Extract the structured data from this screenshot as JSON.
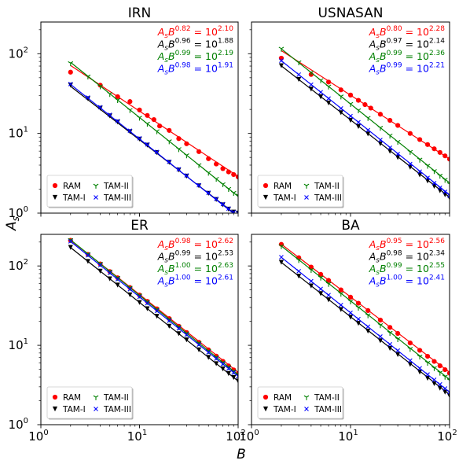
{
  "figure": {
    "xlabel": "B",
    "ylabel_base": "A",
    "ylabel_sub": "s"
  },
  "legend_labels": [
    "RAM",
    "TAM-I",
    "TAM-II",
    "TAM-III"
  ],
  "colors": {
    "RAM": "#ff0000",
    "TAM-I": "#000000",
    "TAM-II": "#008000",
    "TAM-III": "#0000ff"
  },
  "chart_data": [
    {
      "type": "scatter",
      "title": "IRN",
      "xscale": "log",
      "yscale": "log",
      "xlim": [
        1,
        100
      ],
      "ylim": [
        1,
        250
      ],
      "xticks": [
        "10^0",
        "10^1",
        "10^2"
      ],
      "yticks": [
        "10^0",
        "10^1",
        "10^2"
      ],
      "legend_position": "lower-left",
      "equations": [
        {
          "series": "RAM",
          "exponent": "0.82",
          "rhs": "2.10"
        },
        {
          "series": "TAM-I",
          "exponent": "0.96",
          "rhs": "1.88"
        },
        {
          "series": "TAM-II",
          "exponent": "0.99",
          "rhs": "2.19"
        },
        {
          "series": "TAM-III",
          "exponent": "0.98",
          "rhs": "1.91"
        }
      ],
      "series": [
        {
          "name": "RAM",
          "marker": "circle",
          "fit": {
            "a": 2.1,
            "b": 0.82
          },
          "x": [
            2,
            4,
            6,
            8,
            10,
            12,
            14,
            16,
            20,
            25,
            30,
            40,
            50,
            60,
            70,
            80,
            90,
            100
          ],
          "y": [
            58.7,
            40.3,
            28.9,
            25.1,
            19.7,
            16.8,
            14.9,
            12.4,
            10.9,
            8.61,
            7.42,
            5.91,
            4.82,
            4.13,
            3.62,
            3.29,
            3.05,
            2.85
          ]
        },
        {
          "name": "TAM-I",
          "marker": "triangle-down",
          "fit": {
            "a": 1.88,
            "b": 0.96
          },
          "x": [
            2,
            3,
            4,
            5,
            6,
            8,
            10,
            12,
            15,
            20,
            25,
            30,
            40,
            50,
            60,
            70,
            80,
            90,
            100
          ],
          "y": [
            40.4,
            27.3,
            20.7,
            16.6,
            13.9,
            10.5,
            8.48,
            7.12,
            5.74,
            4.33,
            3.48,
            2.91,
            2.2,
            1.77,
            1.48,
            1.27,
            1.12,
            1.03,
            1.0
          ]
        },
        {
          "name": "TAM-II",
          "marker": "tri-down",
          "fit": {
            "a": 2.19,
            "b": 0.99
          },
          "x": [
            2,
            3,
            4,
            5,
            6,
            8,
            10,
            12,
            15,
            20,
            25,
            30,
            40,
            50,
            60,
            70,
            80,
            90,
            100
          ],
          "y": [
            76.3,
            52.0,
            39.1,
            31.4,
            26.3,
            19.7,
            15.8,
            13.3,
            10.7,
            8.0,
            6.38,
            5.33,
            4.02,
            3.22,
            2.7,
            2.31,
            2.02,
            1.8,
            1.67
          ]
        },
        {
          "name": "TAM-III",
          "marker": "x",
          "fit": {
            "a": 1.91,
            "b": 0.98
          },
          "x": [
            2,
            3,
            4,
            5,
            6,
            8,
            10,
            12,
            15,
            20,
            25,
            30,
            40,
            50,
            60,
            70,
            80,
            90,
            100
          ],
          "y": [
            41.6,
            28.2,
            21.3,
            17.1,
            14.3,
            10.8,
            8.68,
            7.28,
            5.85,
            4.41,
            3.55,
            2.97,
            2.24,
            1.8,
            1.51,
            1.3,
            1.14,
            1.03,
            1.0
          ]
        }
      ]
    },
    {
      "type": "scatter",
      "title": "USNASAN",
      "xscale": "log",
      "yscale": "log",
      "xlim": [
        1,
        100
      ],
      "ylim": [
        1,
        250
      ],
      "xticks": [
        "10^0",
        "10^1",
        "10^2"
      ],
      "yticks": [
        "10^0",
        "10^1",
        "10^2"
      ],
      "legend_position": "lower-left",
      "equations": [
        {
          "series": "RAM",
          "exponent": "0.80",
          "rhs": "2.28"
        },
        {
          "series": "TAM-I",
          "exponent": "0.97",
          "rhs": "2.14"
        },
        {
          "series": "TAM-II",
          "exponent": "0.99",
          "rhs": "2.36"
        },
        {
          "series": "TAM-III",
          "exponent": "0.99",
          "rhs": "2.21"
        }
      ],
      "series": [
        {
          "name": "RAM",
          "marker": "circle",
          "fit": {
            "a": 2.28,
            "b": 0.8
          },
          "x": [
            2,
            4,
            6,
            8,
            10,
            12,
            14,
            16,
            20,
            25,
            30,
            40,
            50,
            60,
            70,
            80,
            90,
            100
          ],
          "y": [
            88.0,
            55.0,
            44.1,
            35.2,
            30.3,
            26.0,
            23.0,
            20.8,
            17.4,
            14.6,
            12.6,
            9.99,
            8.38,
            7.25,
            6.41,
            5.77,
            5.23,
            4.76
          ]
        },
        {
          "name": "TAM-I",
          "marker": "triangle-down",
          "fit": {
            "a": 2.14,
            "b": 0.97
          },
          "x": [
            2,
            3,
            4,
            5,
            6,
            8,
            10,
            12,
            15,
            20,
            25,
            30,
            40,
            50,
            60,
            70,
            80,
            90,
            100
          ],
          "y": [
            70.7,
            47.6,
            35.9,
            28.8,
            24.1,
            18.2,
            14.6,
            12.2,
            9.85,
            7.42,
            5.96,
            4.99,
            3.76,
            3.02,
            2.53,
            2.17,
            1.91,
            1.7,
            1.55
          ]
        },
        {
          "name": "TAM-II",
          "marker": "tri-down",
          "fit": {
            "a": 2.36,
            "b": 0.99
          },
          "x": [
            2,
            3,
            4,
            5,
            6,
            8,
            10,
            12,
            15,
            20,
            25,
            30,
            40,
            50,
            60,
            70,
            80,
            90,
            100
          ],
          "y": [
            116.0,
            78.3,
            58.5,
            46.7,
            38.9,
            29.2,
            23.5,
            19.6,
            15.7,
            11.8,
            9.44,
            7.87,
            5.88,
            4.71,
            3.94,
            3.38,
            2.96,
            2.63,
            2.32
          ]
        },
        {
          "name": "TAM-III",
          "marker": "x",
          "fit": {
            "a": 2.21,
            "b": 0.99
          },
          "x": [
            2,
            3,
            4,
            5,
            6,
            8,
            10,
            12,
            15,
            20,
            25,
            30,
            40,
            50,
            60,
            70,
            80,
            90,
            100
          ],
          "y": [
            81.8,
            54.7,
            41.0,
            32.9,
            27.4,
            20.6,
            16.5,
            13.8,
            11.0,
            8.27,
            6.62,
            5.52,
            4.14,
            3.32,
            2.77,
            2.38,
            2.08,
            1.85,
            1.66
          ]
        }
      ]
    },
    {
      "type": "scatter",
      "title": "ER",
      "xscale": "log",
      "yscale": "log",
      "xlim": [
        1,
        100
      ],
      "ylim": [
        1,
        250
      ],
      "xticks": [
        "10^0",
        "10^1",
        "10^2"
      ],
      "yticks": [
        "10^0",
        "10^1",
        "10^2"
      ],
      "legend_position": "lower-left",
      "equations": [
        {
          "series": "RAM",
          "exponent": "0.98",
          "rhs": "2.62"
        },
        {
          "series": "TAM-I",
          "exponent": "0.99",
          "rhs": "2.53"
        },
        {
          "series": "TAM-II",
          "exponent": "1.00",
          "rhs": "2.63"
        },
        {
          "series": "TAM-III",
          "exponent": "1.00",
          "rhs": "2.61"
        }
      ],
      "series": [
        {
          "name": "RAM",
          "marker": "circle",
          "fit": {
            "a": 2.62,
            "b": 0.98
          },
          "x": [
            2,
            3,
            4,
            5,
            6,
            8,
            10,
            12,
            15,
            20,
            25,
            30,
            40,
            50,
            60,
            70,
            80,
            90,
            100
          ],
          "y": [
            210.0,
            140.0,
            106.0,
            84.9,
            70.9,
            53.4,
            42.9,
            35.8,
            28.8,
            21.7,
            17.4,
            14.5,
            10.9,
            8.76,
            7.31,
            6.28,
            5.5,
            4.9,
            4.41
          ]
        },
        {
          "name": "TAM-I",
          "marker": "triangle-down",
          "fit": {
            "a": 2.53,
            "b": 0.99
          },
          "x": [
            2,
            3,
            4,
            5,
            6,
            8,
            10,
            12,
            15,
            20,
            25,
            30,
            40,
            50,
            60,
            70,
            80,
            90,
            100
          ],
          "y": [
            171.0,
            114.0,
            85.9,
            68.8,
            57.4,
            43.2,
            34.6,
            28.9,
            23.2,
            17.4,
            14.0,
            11.7,
            8.77,
            7.03,
            5.87,
            5.04,
            4.41,
            3.93,
            3.54
          ]
        },
        {
          "name": "TAM-II",
          "marker": "tri-down",
          "fit": {
            "a": 2.63,
            "b": 1.0
          },
          "x": [
            2,
            3,
            4,
            5,
            6,
            8,
            10,
            12,
            15,
            20,
            25,
            30,
            40,
            50,
            60,
            70,
            80,
            90,
            100
          ],
          "y": [
            213.0,
            142.0,
            107.0,
            85.3,
            71.1,
            53.3,
            42.7,
            35.5,
            28.4,
            21.3,
            17.1,
            14.2,
            10.7,
            8.53,
            7.11,
            6.09,
            5.33,
            4.74,
            4.27
          ]
        },
        {
          "name": "TAM-III",
          "marker": "x",
          "fit": {
            "a": 2.61,
            "b": 1.0
          },
          "x": [
            2,
            3,
            4,
            5,
            6,
            8,
            10,
            12,
            15,
            20,
            25,
            30,
            40,
            50,
            60,
            70,
            80,
            90,
            100
          ],
          "y": [
            204.0,
            136.0,
            102.0,
            81.5,
            67.9,
            50.9,
            40.7,
            33.9,
            27.2,
            20.4,
            16.3,
            13.6,
            10.2,
            8.15,
            6.79,
            5.82,
            5.09,
            4.53,
            4.07
          ]
        }
      ]
    },
    {
      "type": "scatter",
      "title": "BA",
      "xscale": "log",
      "yscale": "log",
      "xlim": [
        1,
        100
      ],
      "ylim": [
        1,
        250
      ],
      "xticks": [
        "10^0",
        "10^1",
        "10^2"
      ],
      "yticks": [
        "10^0",
        "10^1",
        "10^2"
      ],
      "legend_position": "lower-left",
      "equations": [
        {
          "series": "RAM",
          "exponent": "0.95",
          "rhs": "2.56"
        },
        {
          "series": "TAM-I",
          "exponent": "0.98",
          "rhs": "2.34"
        },
        {
          "series": "TAM-II",
          "exponent": "0.99",
          "rhs": "2.55"
        },
        {
          "series": "TAM-III",
          "exponent": "1.00",
          "rhs": "2.41"
        }
      ],
      "series": [
        {
          "name": "RAM",
          "marker": "circle",
          "fit": {
            "a": 2.56,
            "b": 0.95
          },
          "x": [
            2,
            3,
            4,
            5,
            6,
            8,
            10,
            12,
            15,
            20,
            25,
            30,
            40,
            50,
            60,
            70,
            80,
            90,
            100
          ],
          "y": [
            187.0,
            127.0,
            96.8,
            78.3,
            65.8,
            49.9,
            40.4,
            33.9,
            27.4,
            20.8,
            16.8,
            14.1,
            10.7,
            8.65,
            7.27,
            6.27,
            5.52,
            4.93,
            4.45
          ]
        },
        {
          "name": "TAM-I",
          "marker": "triangle-down",
          "fit": {
            "a": 2.34,
            "b": 0.98
          },
          "x": [
            2,
            3,
            4,
            5,
            6,
            8,
            10,
            12,
            15,
            20,
            25,
            30,
            40,
            50,
            60,
            70,
            80,
            90,
            100
          ],
          "y": [
            111.0,
            74.3,
            55.9,
            44.8,
            37.4,
            28.2,
            22.6,
            18.9,
            15.1,
            11.4,
            9.15,
            7.64,
            5.74,
            4.6,
            3.84,
            3.29,
            2.88,
            2.57,
            2.31
          ]
        },
        {
          "name": "TAM-II",
          "marker": "tri-down",
          "fit": {
            "a": 2.55,
            "b": 0.99
          },
          "x": [
            2,
            3,
            4,
            5,
            6,
            8,
            10,
            12,
            15,
            20,
            25,
            30,
            40,
            50,
            60,
            70,
            80,
            90,
            100
          ],
          "y": [
            178.0,
            119.0,
            89.3,
            71.5,
            59.6,
            44.8,
            35.9,
            29.9,
            24.0,
            18.0,
            14.4,
            12.0,
            9.04,
            7.24,
            6.04,
            5.18,
            4.54,
            4.04,
            3.63
          ]
        },
        {
          "name": "TAM-III",
          "marker": "x",
          "fit": {
            "a": 2.41,
            "b": 1.0
          },
          "x": [
            2,
            3,
            4,
            5,
            6,
            8,
            10,
            12,
            15,
            20,
            25,
            30,
            40,
            50,
            60,
            70,
            80,
            90,
            100
          ],
          "y": [
            129.0,
            85.8,
            64.3,
            51.4,
            42.9,
            32.2,
            25.7,
            21.4,
            17.2,
            12.9,
            10.3,
            8.58,
            6.43,
            5.14,
            4.29,
            3.68,
            3.22,
            2.86,
            2.57
          ]
        }
      ]
    }
  ]
}
